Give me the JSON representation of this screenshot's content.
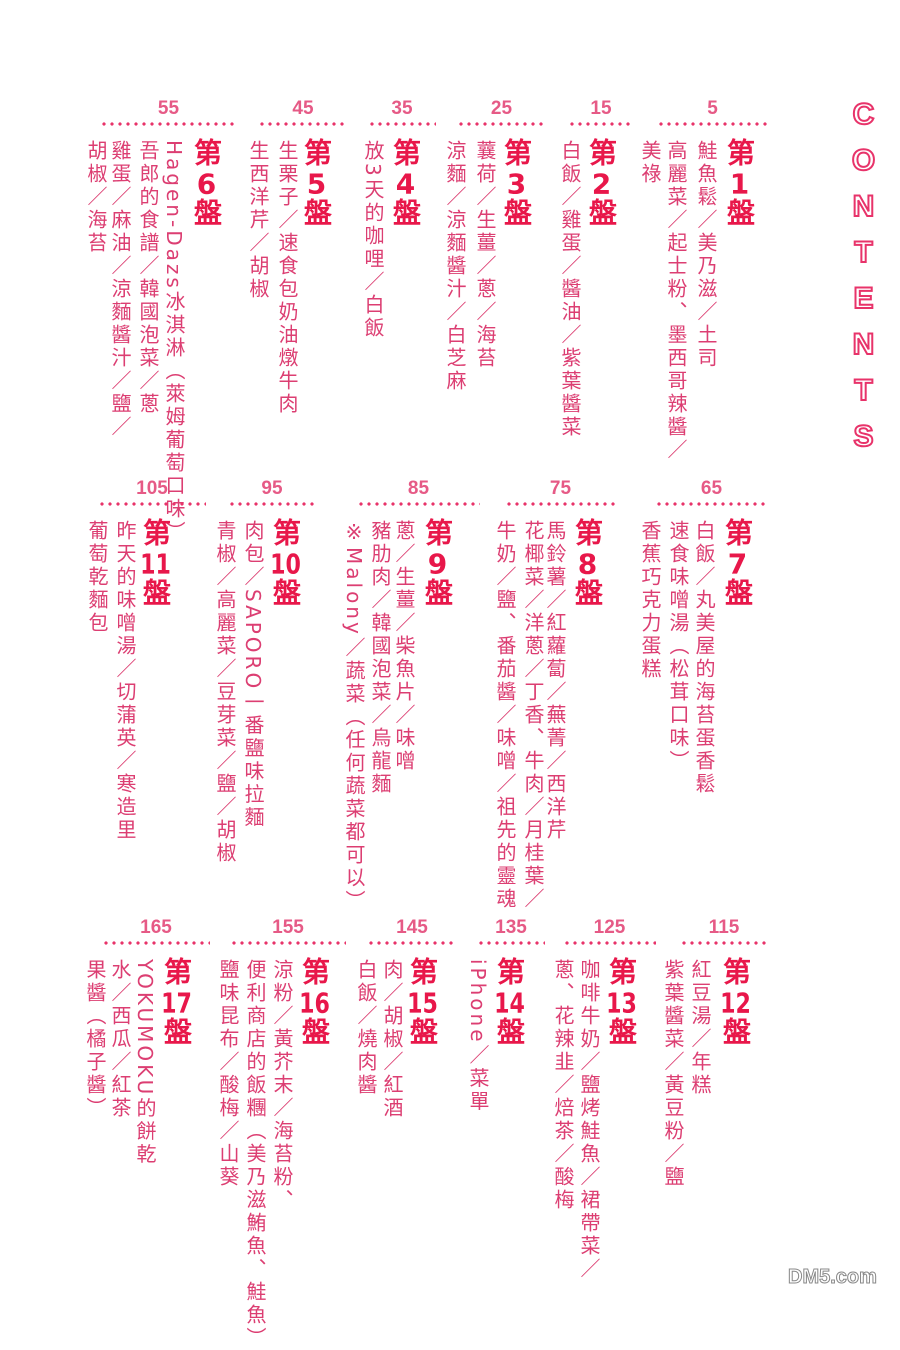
{
  "heading": "CONTENTS",
  "watermark": "DM5.com",
  "colors": {
    "accent": "#e8174a",
    "text": "#dc3e72"
  },
  "chapters": [
    {
      "page": "5",
      "title": "第1盤",
      "lines": [
        "鮭魚鬆／美乃滋／土司",
        "高麗菜／起士粉、墨西哥辣醬／",
        "美祿"
      ]
    },
    {
      "page": "15",
      "title": "第2盤",
      "lines": [
        "白飯／雞蛋／醬油／紫葉醬菜"
      ]
    },
    {
      "page": "25",
      "title": "第3盤",
      "lines": [
        "蘘荷／生薑／蔥／海苔",
        "涼麵／涼麵醬汁／白芝麻"
      ]
    },
    {
      "page": "35",
      "title": "第4盤",
      "lines": [
        "放3天的咖哩／白飯"
      ]
    },
    {
      "page": "45",
      "title": "第5盤",
      "lines": [
        "生栗子／速食包奶油燉牛肉",
        "生西洋芹／胡椒"
      ]
    },
    {
      "page": "55",
      "title": "第6盤",
      "lines": [
        "Hagen-Dazs冰淇淋（萊姆葡萄口味）",
        "吾郎的食譜／韓國泡菜／蔥",
        "雞蛋／麻油／涼麵醬汁／鹽／",
        "胡椒／海苔"
      ]
    },
    {
      "page": "65",
      "title": "第7盤",
      "lines": [
        "白飯／丸美屋的海苔蛋香鬆",
        "速食味噌湯（松茸口味）",
        "香蕉巧克力蛋糕"
      ]
    },
    {
      "page": "75",
      "title": "第8盤",
      "lines": [
        "馬鈴薯／紅蘿蔔／蕪菁／西洋芹",
        "花椰菜／洋蔥／丁香、牛肉／月桂葉／",
        "牛奶／鹽、番茄醬／味噌／祖先的靈魂"
      ]
    },
    {
      "page": "85",
      "title": "第9盤",
      "lines": [
        "蔥／生薑／柴魚片／味噌",
        "豬肋肉／韓國泡菜／烏龍麵",
        "※Malony／蔬菜（任何蔬菜都可以）"
      ]
    },
    {
      "page": "95",
      "title": "第10盤",
      "lines": [
        "肉包／SAPORO一番鹽味拉麵",
        "青椒／高麗菜／豆芽菜／鹽／胡椒"
      ]
    },
    {
      "page": "105",
      "title": "第11盤",
      "lines": [
        "昨天的味噌湯／切蒲英／寒造里",
        "葡萄乾麵包"
      ]
    },
    {
      "page": "115",
      "title": "第12盤",
      "lines": [
        "紅豆湯／年糕",
        "紫葉醬菜／黃豆粉／鹽"
      ]
    },
    {
      "page": "125",
      "title": "第13盤",
      "lines": [
        "咖啡牛奶／鹽烤鮭魚／裙帶菜／",
        "蔥、花辣韭／焙茶／酸梅"
      ]
    },
    {
      "page": "135",
      "title": "第14盤",
      "lines": [
        "iPhone／菜單"
      ]
    },
    {
      "page": "145",
      "title": "第15盤",
      "lines": [
        "肉／胡椒／紅酒",
        "白飯／燒肉醬"
      ]
    },
    {
      "page": "155",
      "title": "第16盤",
      "lines": [
        "涼粉／黃芥末／海苔粉、",
        "便利商店的飯糰（美乃滋鮪魚、鮭魚）",
        "鹽味昆布／酸梅／山葵"
      ]
    },
    {
      "page": "165",
      "title": "第17盤",
      "lines": [
        "YOKUMOKU的餅乾",
        "水／西瓜／紅茶",
        "果醬（橘子醬）"
      ]
    }
  ]
}
